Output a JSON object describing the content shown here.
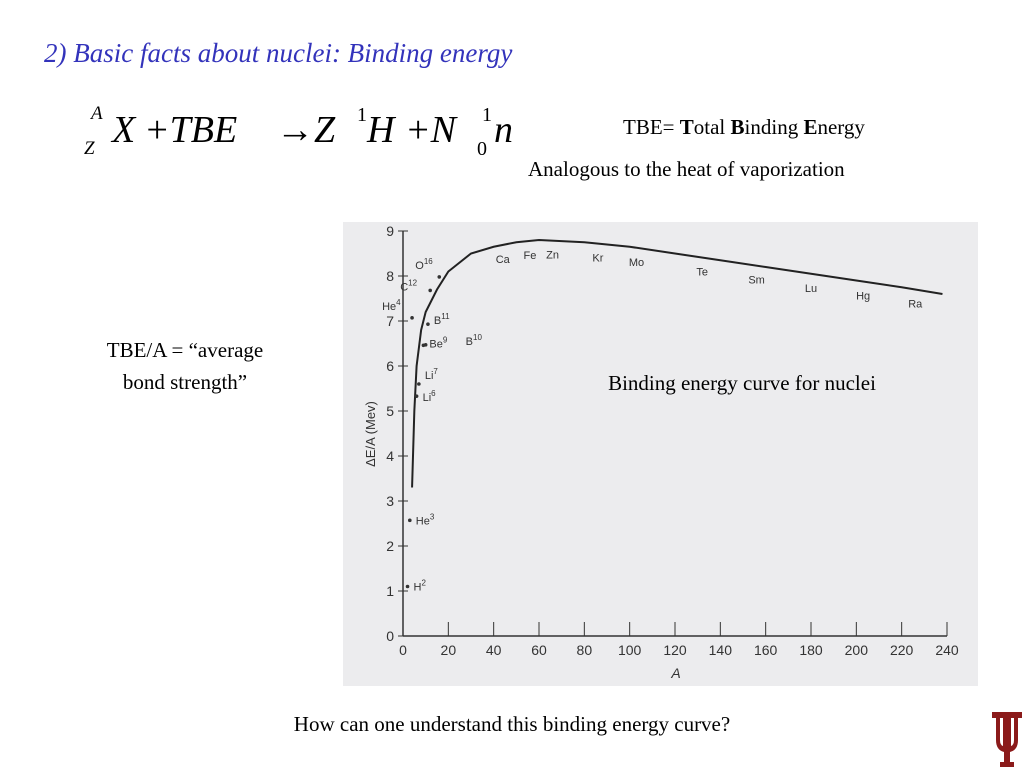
{
  "slide": {
    "title": "2) Basic facts about nuclei: Binding energy",
    "equation": {
      "mass_script": "A",
      "charge_script": "Z",
      "terms": [
        "X",
        "+TBE",
        "→Z",
        "H",
        "+N",
        "n"
      ],
      "h_script": "1",
      "n_upper": "1",
      "n_lower": "0"
    },
    "definition": {
      "lead": "TBE=",
      "parts": [
        [
          "T",
          "otal"
        ],
        [
          "B",
          "inding"
        ],
        [
          "E",
          "nergy"
        ]
      ]
    },
    "analogy": "Analogous to the heat of vaporization",
    "note": [
      "TBE/A = “average",
      "bond strength”"
    ],
    "caption": "Binding energy curve for nuclei",
    "question": "How can one understand this binding energy curve?"
  },
  "chart_data": {
    "type": "line",
    "x_label": "A",
    "y_label": "ΔE/A (Mev)",
    "xlim": [
      0,
      240
    ],
    "xticks": [
      0,
      20,
      40,
      60,
      80,
      100,
      120,
      140,
      160,
      180,
      200,
      220,
      240
    ],
    "ylim": [
      0,
      9
    ],
    "yticks": [
      0,
      1,
      2,
      3,
      4,
      5,
      6,
      7,
      8,
      9
    ],
    "series": [
      {
        "color": "#222222",
        "x": [
          4,
          5,
          6,
          8,
          10,
          15,
          20,
          30,
          40,
          50,
          60,
          80,
          100,
          120,
          140,
          160,
          180,
          200,
          220,
          238
        ],
        "values": [
          3.3,
          5.0,
          6.0,
          6.8,
          7.2,
          7.7,
          8.1,
          8.5,
          8.65,
          8.75,
          8.8,
          8.75,
          8.65,
          8.5,
          8.35,
          8.2,
          8.05,
          7.9,
          7.75,
          7.6
        ]
      }
    ],
    "points": {
      "labels": [
        "H",
        "He",
        "He",
        "Li",
        "Li",
        "Be",
        "B",
        "B",
        "C",
        "O"
      ],
      "x": [
        2,
        3,
        4,
        6,
        7,
        9,
        10,
        11,
        12,
        16
      ],
      "values": [
        1.1,
        2.57,
        7.07,
        5.33,
        5.6,
        6.46,
        6.47,
        6.93,
        7.68,
        7.98
      ]
    },
    "elements": {
      "names": [
        "Ca",
        "Fe",
        "Zn",
        "Kr",
        "Mo",
        "Te",
        "Sm",
        "Lu",
        "Hg",
        "Ra"
      ],
      "x": [
        44,
        56,
        66,
        86,
        103,
        132,
        156,
        180,
        203,
        226
      ]
    }
  }
}
